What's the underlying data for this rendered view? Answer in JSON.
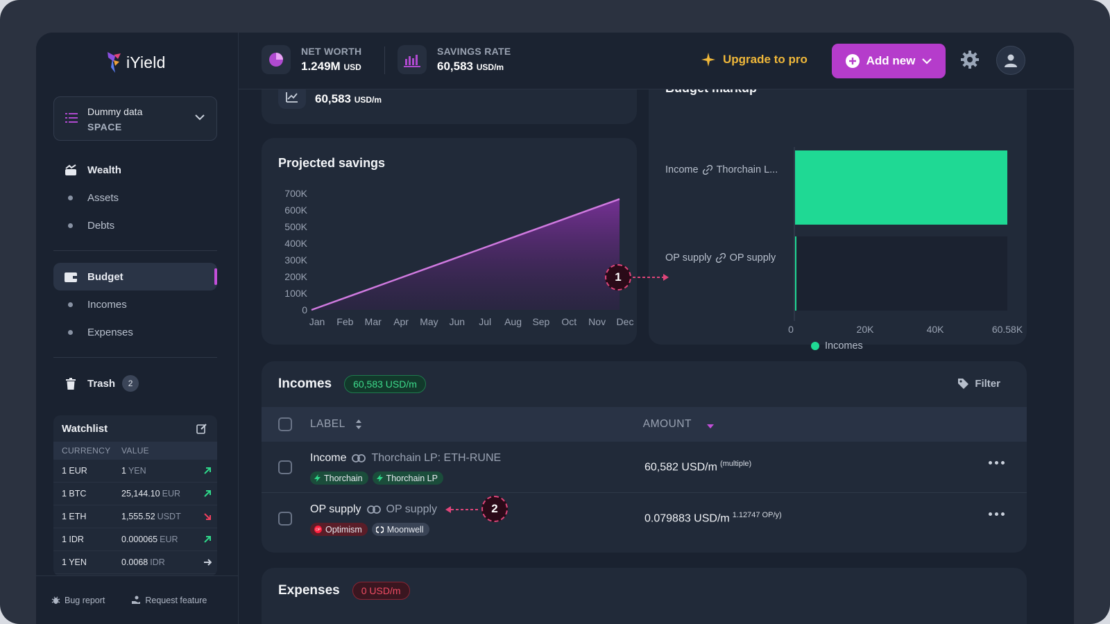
{
  "app": {
    "name": "iYield"
  },
  "space": {
    "name": "Dummy data",
    "type": "SPACE"
  },
  "nav": {
    "wealth": "Wealth",
    "assets": "Assets",
    "debts": "Debts",
    "budget": "Budget",
    "incomes": "Incomes",
    "expenses": "Expenses",
    "trash": "Trash",
    "trash_count": "2"
  },
  "watchlist": {
    "title": "Watchlist",
    "col_currency": "CURRENCY",
    "col_value": "VALUE",
    "rows": [
      {
        "currency": "1 EUR",
        "value": "1",
        "unit": "YEN",
        "trend": "up"
      },
      {
        "currency": "1 BTC",
        "value": "25,144.10",
        "unit": "EUR",
        "trend": "up"
      },
      {
        "currency": "1 ETH",
        "value": "1,555.52",
        "unit": "USDT",
        "trend": "down"
      },
      {
        "currency": "1 IDR",
        "value": "0.000065",
        "unit": "EUR",
        "trend": "up"
      },
      {
        "currency": "1 YEN",
        "value": "0.0068",
        "unit": "IDR",
        "trend": "flat"
      }
    ]
  },
  "footer": {
    "bug_report": "Bug report",
    "request_feature": "Request feature"
  },
  "header": {
    "net_worth_label": "NET WORTH",
    "net_worth_value": "1.249M",
    "net_worth_unit": "USD",
    "savings_rate_label": "SAVINGS RATE",
    "savings_rate_value": "60,583",
    "savings_rate_unit": "USD/m",
    "upgrade": "Upgrade to pro",
    "add_new": "Add new"
  },
  "top_card": {
    "value": "60,583",
    "unit": "USD/m"
  },
  "projected": {
    "title": "Projected savings",
    "callout": "1"
  },
  "budget_markup": {
    "title": "Budget markup",
    "row1_a": "Income",
    "row1_b": "Thorchain L...",
    "row2_a": "OP supply",
    "row2_b": "OP supply",
    "legend": "Incomes"
  },
  "chart_data": [
    {
      "type": "area",
      "title": "Projected savings",
      "x": [
        "Jan",
        "Feb",
        "Mar",
        "Apr",
        "May",
        "Jun",
        "Jul",
        "Aug",
        "Sep",
        "Oct",
        "Nov",
        "Dec"
      ],
      "y_ticks": [
        "0",
        "100K",
        "200K",
        "300K",
        "400K",
        "500K",
        "600K",
        "700K"
      ],
      "ylim": [
        0,
        700000
      ],
      "series": [
        {
          "values": [
            0,
            60583,
            121166,
            181749,
            242332,
            302915,
            363498,
            424081,
            484664,
            545247,
            605830,
            666413
          ]
        }
      ],
      "colors": {
        "line": "#d07ae0",
        "fill": "#6a2c88"
      }
    },
    {
      "type": "bar",
      "orientation": "horizontal",
      "categories": [
        "Income Thorchain L...",
        "OP supply OP supply"
      ],
      "series": [
        {
          "name": "Incomes",
          "values": [
            60582,
            0.079883
          ]
        }
      ],
      "x_ticks": [
        "0",
        "20K",
        "40K",
        "60.58K"
      ],
      "xlim": [
        0,
        60583
      ],
      "colors": {
        "bar": "#1fd994"
      }
    }
  ],
  "incomes": {
    "title": "Incomes",
    "total": "60,583 USD/m",
    "filter": "Filter",
    "col_label": "LABEL",
    "col_amount": "AMOUNT",
    "rows": [
      {
        "label": "Income",
        "linked": "Thorchain LP: ETH-RUNE",
        "tags": [
          "Thorchain",
          "Thorchain LP"
        ],
        "amount": "60,582 USD/m",
        "note": "(multiple)"
      },
      {
        "label": "OP supply",
        "linked": "OP supply",
        "tags": [
          "Optimism",
          "Moonwell"
        ],
        "amount": "0.079883 USD/m",
        "note": "1.12747 OP/y)",
        "callout": "2"
      }
    ]
  },
  "expenses": {
    "title": "Expenses",
    "total": "0 USD/m"
  }
}
